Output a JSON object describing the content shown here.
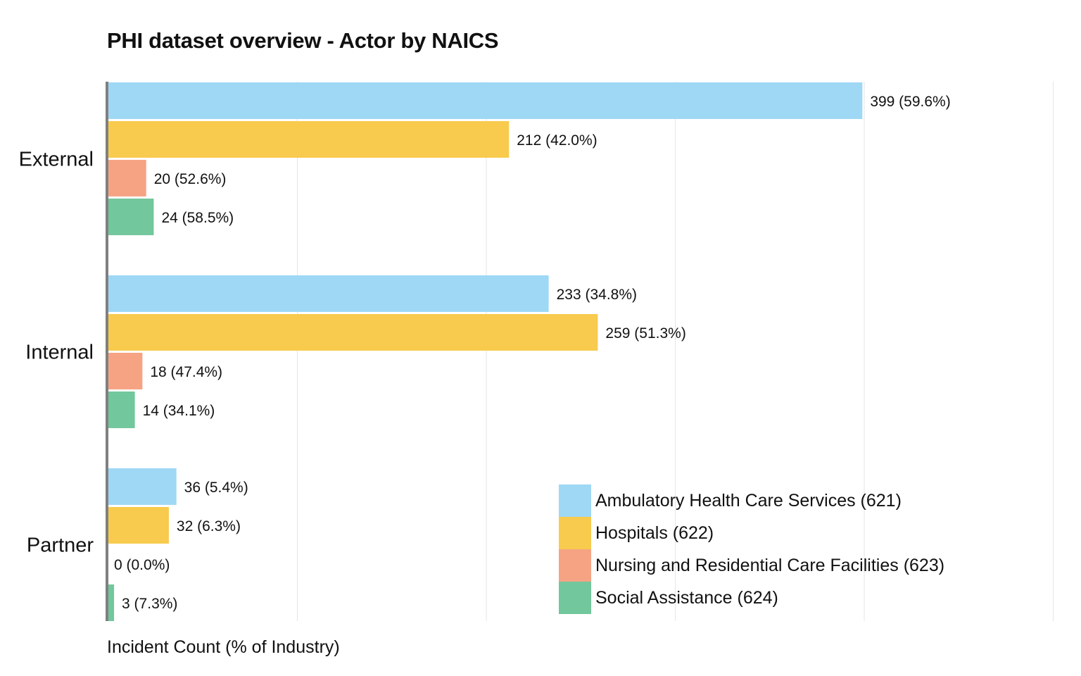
{
  "chart_data": {
    "type": "bar",
    "orientation": "horizontal",
    "title": "PHI dataset overview - Actor by NAICS",
    "xlabel": "Incident Count (% of Industry)",
    "ylabel": "",
    "xlim": [
      0,
      500
    ],
    "grid": true,
    "legend_position": "bottom-right",
    "categories": [
      "External",
      "Internal",
      "Partner"
    ],
    "series": [
      {
        "name": "Ambulatory Health Care Services (621)",
        "color": "#9ED8F5",
        "values": [
          399,
          233,
          36
        ],
        "labels": [
          "399 (59.6%)",
          "233 (34.8%)",
          "36 (5.4%)"
        ]
      },
      {
        "name": "Hospitals (622)",
        "color": "#F8CB4E",
        "values": [
          212,
          259,
          32
        ],
        "labels": [
          "212 (42.0%)",
          "259 (51.3%)",
          "32 (6.3%)"
        ]
      },
      {
        "name": "Nursing and Residential Care Facilities (623)",
        "color": "#F6A384",
        "values": [
          20,
          18,
          0
        ],
        "labels": [
          "20 (52.6%)",
          "18 (47.4%)",
          "0 (0.0%)"
        ]
      },
      {
        "name": "Social Assistance (624)",
        "color": "#72C79C",
        "values": [
          24,
          14,
          3
        ],
        "labels": [
          "24 (58.5%)",
          "14 (34.1%)",
          "3 (7.3%)"
        ]
      }
    ]
  }
}
